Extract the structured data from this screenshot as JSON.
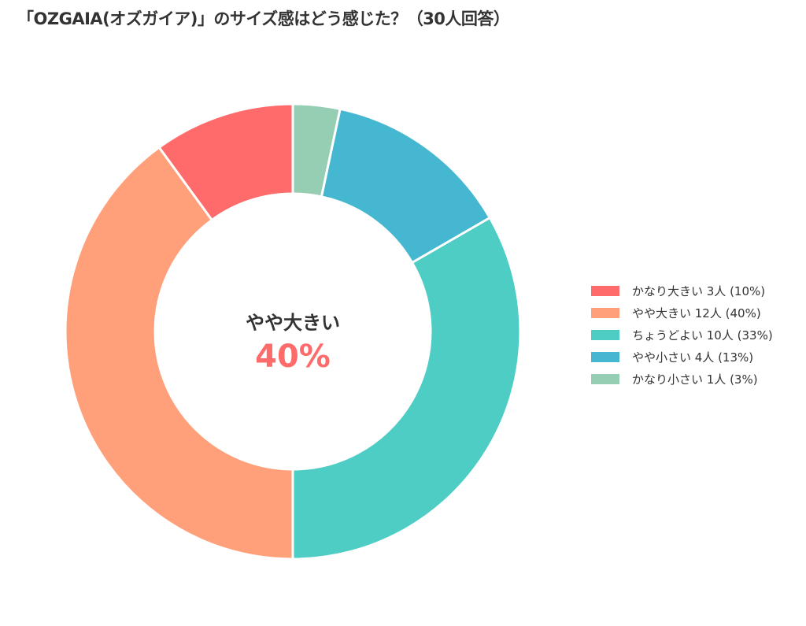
{
  "title": "「OZGAIA(オズガイア)」のサイズ感はどう感じた？（30人回答）",
  "center": {
    "category": "やや大きい",
    "percent": "40%"
  },
  "legend": [
    {
      "label": "かなり大きい  3人 (10%)",
      "color": "#ff6b6b"
    },
    {
      "label": "やや大きい  12人 (40%)",
      "color": "#ffa07a"
    },
    {
      "label": "ちょうどよい  10人 (33%)",
      "color": "#4ecdc4"
    },
    {
      "label": "やや小さい  4人 (13%)",
      "color": "#45b7d1"
    },
    {
      "label": "かなり小さい  1人 (3%)",
      "color": "#96ceb4"
    }
  ],
  "chart_data": {
    "type": "pie",
    "variant": "donut",
    "title": "「OZGAIA(オズガイア)」のサイズ感はどう感じた？（30人回答）",
    "categories": [
      "かなり大きい",
      "やや大きい",
      "ちょうどよい",
      "やや小さい",
      "かなり小さい"
    ],
    "counts": [
      3,
      12,
      10,
      4,
      1
    ],
    "values": [
      10,
      40,
      33,
      13,
      3
    ],
    "colors": [
      "#ff6b6b",
      "#ffa07a",
      "#4ecdc4",
      "#45b7d1",
      "#96ceb4"
    ],
    "total": 30,
    "center_annotation": "やや大きい 40%",
    "legend_position": "right"
  }
}
